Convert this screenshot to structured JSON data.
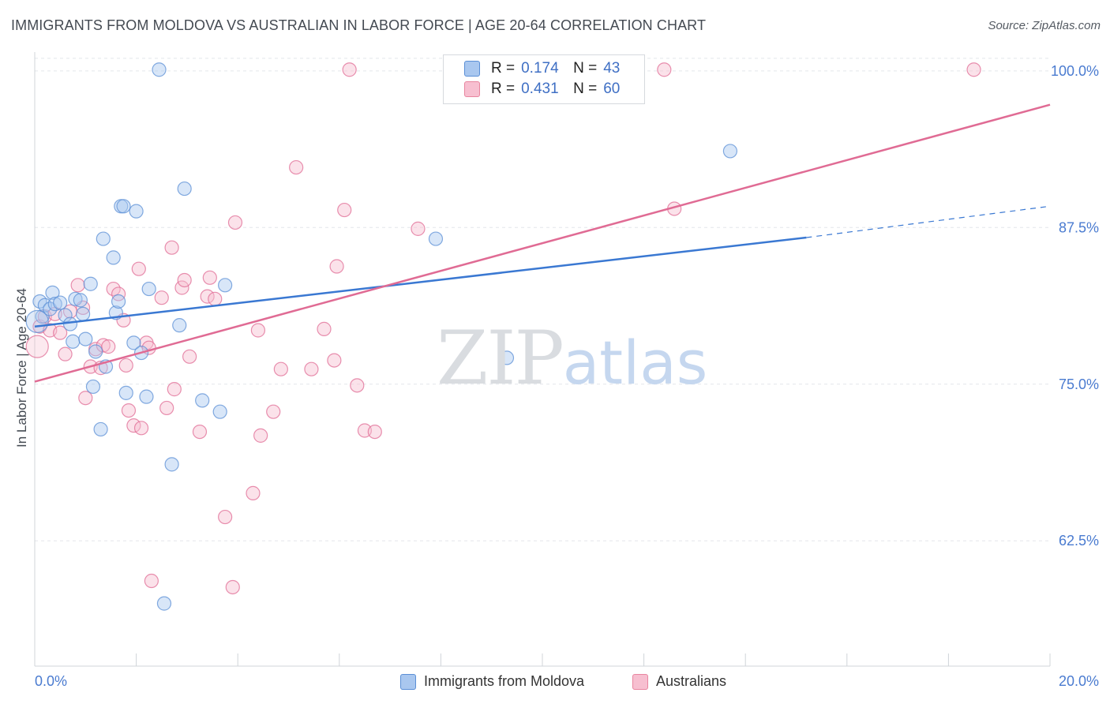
{
  "header": {
    "title": "IMMIGRANTS FROM MOLDOVA VS AUSTRALIAN IN LABOR FORCE | AGE 20-64 CORRELATION CHART",
    "source": "Source: ZipAtlas.com"
  },
  "watermark": {
    "zip": "ZIP",
    "atlas": "atlas"
  },
  "legend": {
    "rows": [
      {
        "r_label": "R =",
        "r_value": "0.174",
        "n_label": "N =",
        "n_value": "43",
        "color": "#a9c7ef",
        "stroke": "#5b8fd6"
      },
      {
        "r_label": "R =",
        "r_value": "0.431",
        "n_label": "N =",
        "n_value": "60",
        "color": "#f7bfd0",
        "stroke": "#e8859f"
      }
    ]
  },
  "bottom_legend": {
    "moldova": "Immigrants from Moldova",
    "australians": "Australians"
  },
  "chart_data": {
    "type": "scatter",
    "title": "IMMIGRANTS FROM MOLDOVA VS AUSTRALIAN IN LABOR FORCE | AGE 20-64 CORRELATION CHART",
    "xlabel": "",
    "ylabel": "In Labor Force | Age 20-64",
    "xlim": [
      0,
      20
    ],
    "ylim": [
      52.5,
      101.5
    ],
    "x_tick_labels": [
      "0.0%",
      "20.0%"
    ],
    "y_ticks": [
      62.5,
      75.0,
      87.5,
      100.0
    ],
    "y_tick_labels": [
      "62.5%",
      "75.0%",
      "87.5%",
      "100.0%"
    ],
    "grid": true,
    "legend_position": "top-center",
    "series": [
      {
        "name": "Immigrants from Moldova",
        "color": "#5b8fd6",
        "fill": "#a9c7ef",
        "points": [
          [
            0.1,
            81.6
          ],
          [
            0.15,
            80.4
          ],
          [
            0.2,
            81.3
          ],
          [
            0.3,
            81.0
          ],
          [
            0.35,
            82.3
          ],
          [
            0.4,
            81.4
          ],
          [
            0.5,
            81.5
          ],
          [
            0.6,
            80.5
          ],
          [
            0.7,
            79.8
          ],
          [
            0.75,
            78.4
          ],
          [
            0.8,
            81.8
          ],
          [
            0.9,
            81.7
          ],
          [
            0.95,
            80.6
          ],
          [
            1.0,
            78.6
          ],
          [
            1.1,
            83.0
          ],
          [
            1.15,
            74.8
          ],
          [
            1.2,
            77.6
          ],
          [
            1.3,
            71.4
          ],
          [
            1.35,
            86.6
          ],
          [
            1.4,
            76.4
          ],
          [
            1.55,
            85.1
          ],
          [
            1.6,
            80.7
          ],
          [
            1.65,
            81.6
          ],
          [
            1.7,
            89.2
          ],
          [
            1.75,
            89.2
          ],
          [
            1.8,
            74.3
          ],
          [
            1.95,
            78.3
          ],
          [
            2.0,
            88.8
          ],
          [
            2.1,
            77.5
          ],
          [
            2.2,
            74.0
          ],
          [
            2.25,
            82.6
          ],
          [
            2.45,
            100.1
          ],
          [
            2.55,
            57.5
          ],
          [
            2.7,
            68.6
          ],
          [
            2.85,
            79.7
          ],
          [
            2.95,
            90.6
          ],
          [
            3.3,
            73.7
          ],
          [
            3.65,
            72.8
          ],
          [
            3.75,
            82.9
          ],
          [
            7.9,
            86.6
          ],
          [
            9.3,
            77.1
          ],
          [
            13.7,
            93.6
          ],
          [
            0.05,
            80.0
          ]
        ],
        "trend": {
          "x": [
            0,
            15.2,
            20.0
          ],
          "y": [
            79.6,
            86.7,
            89.2
          ],
          "solid_until": 15.2
        }
      },
      {
        "name": "Australians",
        "color": "#e06b94",
        "fill": "#f7bfd0",
        "points": [
          [
            0.1,
            79.6
          ],
          [
            0.2,
            80.4
          ],
          [
            0.3,
            79.3
          ],
          [
            0.4,
            80.6
          ],
          [
            0.5,
            79.1
          ],
          [
            0.6,
            77.4
          ],
          [
            0.7,
            80.8
          ],
          [
            0.85,
            82.9
          ],
          [
            0.95,
            81.1
          ],
          [
            1.0,
            73.9
          ],
          [
            1.1,
            76.4
          ],
          [
            1.2,
            77.8
          ],
          [
            1.3,
            76.3
          ],
          [
            1.35,
            78.1
          ],
          [
            1.45,
            78.0
          ],
          [
            1.55,
            82.6
          ],
          [
            1.65,
            82.2
          ],
          [
            1.75,
            80.1
          ],
          [
            1.8,
            76.5
          ],
          [
            1.85,
            72.9
          ],
          [
            1.95,
            71.7
          ],
          [
            2.05,
            84.2
          ],
          [
            2.1,
            71.5
          ],
          [
            2.2,
            78.3
          ],
          [
            2.25,
            77.9
          ],
          [
            2.3,
            59.3
          ],
          [
            2.5,
            81.9
          ],
          [
            2.6,
            73.1
          ],
          [
            2.7,
            85.9
          ],
          [
            2.75,
            74.6
          ],
          [
            2.9,
            82.7
          ],
          [
            2.95,
            83.3
          ],
          [
            3.05,
            77.2
          ],
          [
            3.25,
            71.2
          ],
          [
            3.4,
            82.0
          ],
          [
            3.45,
            83.5
          ],
          [
            3.55,
            81.8
          ],
          [
            3.75,
            64.4
          ],
          [
            3.9,
            58.8
          ],
          [
            3.95,
            87.9
          ],
          [
            4.3,
            66.3
          ],
          [
            4.4,
            79.3
          ],
          [
            4.45,
            70.9
          ],
          [
            4.7,
            72.8
          ],
          [
            4.85,
            76.2
          ],
          [
            5.15,
            92.3
          ],
          [
            5.45,
            76.2
          ],
          [
            5.7,
            79.4
          ],
          [
            5.9,
            76.9
          ],
          [
            5.95,
            84.4
          ],
          [
            6.1,
            88.9
          ],
          [
            6.2,
            100.1
          ],
          [
            6.35,
            74.9
          ],
          [
            6.5,
            71.3
          ],
          [
            6.7,
            71.2
          ],
          [
            7.55,
            87.4
          ],
          [
            12.4,
            100.1
          ],
          [
            12.6,
            89.0
          ],
          [
            18.5,
            100.1
          ],
          [
            0.05,
            78.0
          ]
        ],
        "trend": {
          "x": [
            0,
            20.0
          ],
          "y": [
            75.2,
            97.3
          ]
        }
      }
    ]
  }
}
